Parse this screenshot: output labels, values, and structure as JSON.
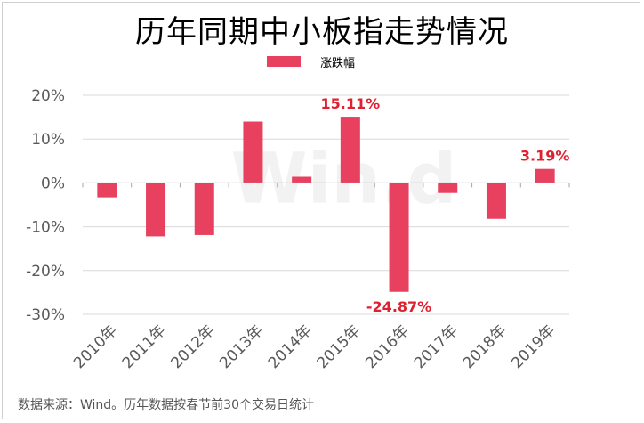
{
  "source_note": "数据来源：Wind。历年数据按春节前30个交易日统计",
  "watermark_text": "Win.d",
  "colors": {
    "bar": "#e8415f",
    "data_label": "#e02030"
  },
  "chart_data": {
    "type": "bar",
    "title": "历年同期中小板指走势情况",
    "xlabel": "",
    "ylabel": "",
    "legend_position": "top-center",
    "grid": true,
    "categories": [
      "2010年",
      "2011年",
      "2012年",
      "2013年",
      "2014年",
      "2015年",
      "2016年",
      "2017年",
      "2018年",
      "2019年"
    ],
    "series": [
      {
        "name": "涨跌幅",
        "values": [
          -3.3,
          -12.2,
          -11.9,
          14.0,
          1.4,
          15.11,
          -24.87,
          -2.3,
          -8.2,
          3.19
        ]
      }
    ],
    "data_labels": [
      "",
      "",
      "",
      "",
      "",
      "15.11%",
      "-24.87%",
      "",
      "",
      "3.19%"
    ],
    "ylim": [
      -30,
      20
    ],
    "yticks": [
      20,
      10,
      0,
      -10,
      -20,
      -30
    ],
    "ytick_labels": [
      "20%",
      "10%",
      "0%",
      "-10%",
      "-20%",
      "-30%"
    ]
  }
}
